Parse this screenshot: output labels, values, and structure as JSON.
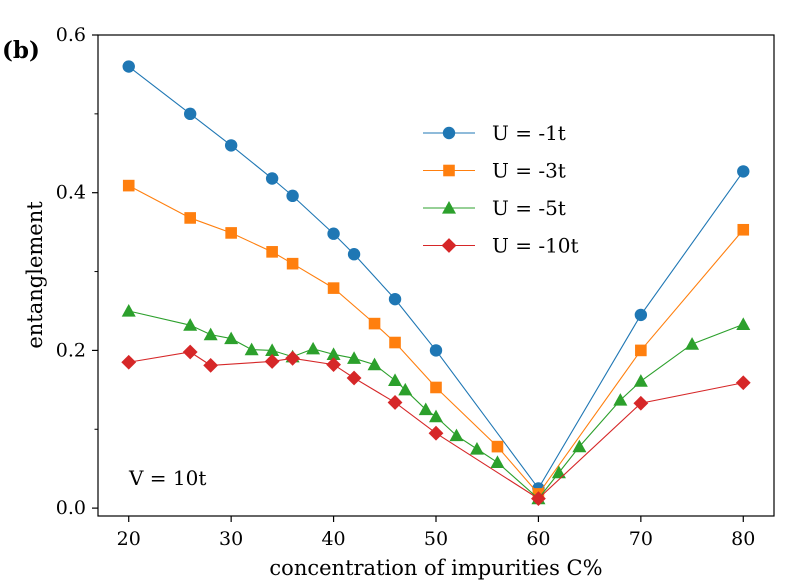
{
  "panel_label": "(b)",
  "chart_data": {
    "type": "line",
    "title": "",
    "xlabel": "concentration of impurities C%",
    "ylabel": "entanglement",
    "xlim": [
      17,
      83
    ],
    "ylim": [
      -0.01,
      0.6
    ],
    "xticks": [
      20,
      30,
      40,
      50,
      60,
      70,
      80
    ],
    "xtick_labels": [
      "20",
      "30",
      "40",
      "50",
      "60",
      "70",
      "80"
    ],
    "yticks": [
      0.0,
      0.2,
      0.4,
      0.6
    ],
    "ytick_labels": [
      "0.0",
      "0.2",
      "0.4",
      "0.6"
    ],
    "yminor_ticks": [
      0.1,
      0.3,
      0.5
    ],
    "grid": false,
    "legend_position": "upper-center",
    "annotation": "V = 10t",
    "series": [
      {
        "name": "U = -1t",
        "color": "#1f77b4",
        "marker": "circle",
        "x": [
          20,
          26,
          30,
          34,
          36,
          40,
          42,
          46,
          50,
          60,
          70,
          80
        ],
        "y": [
          0.56,
          0.5,
          0.46,
          0.418,
          0.396,
          0.348,
          0.322,
          0.265,
          0.2,
          0.025,
          0.245,
          0.427
        ]
      },
      {
        "name": "U = -3t",
        "color": "#ff7f0e",
        "marker": "square",
        "x": [
          20,
          26,
          30,
          34,
          36,
          40,
          44,
          46,
          50,
          56,
          60,
          70,
          80
        ],
        "y": [
          0.409,
          0.368,
          0.349,
          0.325,
          0.31,
          0.279,
          0.234,
          0.21,
          0.153,
          0.078,
          0.018,
          0.2,
          0.353
        ]
      },
      {
        "name": "U = -5t",
        "color": "#2ca02c",
        "marker": "triangle",
        "x": [
          20,
          26,
          28,
          30,
          32,
          34,
          36,
          38,
          40,
          42,
          44,
          46,
          47,
          49,
          50,
          52,
          54,
          56,
          60,
          62,
          64,
          68,
          70,
          75,
          80
        ],
        "y": [
          0.25,
          0.232,
          0.22,
          0.215,
          0.201,
          0.2,
          0.192,
          0.202,
          0.195,
          0.19,
          0.182,
          0.162,
          0.15,
          0.125,
          0.116,
          0.092,
          0.075,
          0.058,
          0.012,
          0.045,
          0.078,
          0.137,
          0.161,
          0.208,
          0.233
        ]
      },
      {
        "name": "U = -10t",
        "color": "#d62728",
        "marker": "diamond",
        "x": [
          20,
          26,
          28,
          34,
          36,
          40,
          42,
          46,
          50,
          60,
          70,
          80
        ],
        "y": [
          0.185,
          0.198,
          0.181,
          0.186,
          0.19,
          0.182,
          0.165,
          0.134,
          0.095,
          0.012,
          0.133,
          0.159
        ]
      }
    ]
  }
}
